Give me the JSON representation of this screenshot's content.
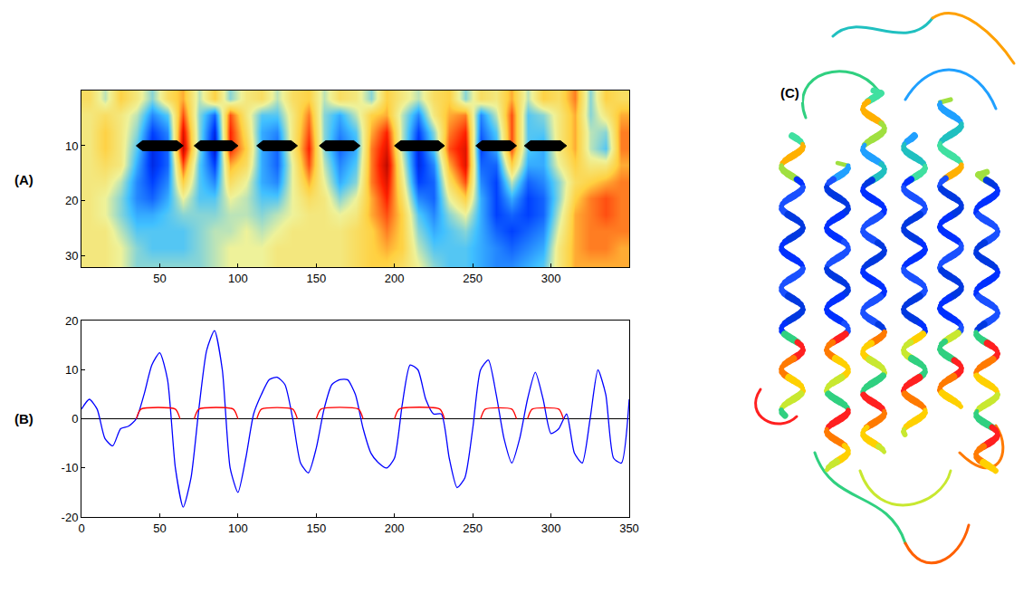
{
  "chart_data": [
    {
      "type": "heatmap",
      "panel": "(A)",
      "x": [
        5,
        15,
        25,
        35,
        45,
        55,
        65,
        75,
        85,
        95,
        105,
        115,
        125,
        135,
        145,
        155,
        165,
        175,
        185,
        195,
        205,
        215,
        225,
        235,
        245,
        255,
        265,
        275,
        285,
        295,
        305,
        315,
        325,
        335,
        345
      ],
      "y": [
        1.5,
        4.5,
        7.5,
        10.5,
        13.5,
        16.5,
        19.5,
        22.5,
        25.5,
        28.5,
        31.5
      ],
      "cells": [
        [
          0.2,
          -0.1,
          0.3,
          0.1,
          -0.2,
          0.2,
          0.4,
          -0.1,
          0.3,
          -0.2,
          0.1,
          0.2,
          -0.1,
          0.2,
          0.3,
          -0.1,
          0.2,
          0.1,
          -0.2,
          0.3,
          0.1,
          -0.1,
          0.2,
          0.3,
          -0.2,
          0.2,
          0.1,
          0.4,
          -0.1,
          0.3,
          0.2,
          0.5,
          -0.2,
          0.3,
          0.2
        ],
        [
          0.1,
          0.2,
          0.1,
          -0.1,
          -0.5,
          -0.3,
          0.6,
          -0.2,
          -0.6,
          0.6,
          0.1,
          -0.3,
          -0.3,
          0.1,
          0.5,
          -0.2,
          -0.4,
          -0.1,
          0.3,
          0.4,
          -0.1,
          -0.5,
          0.1,
          0.4,
          0.5,
          -0.5,
          -0.1,
          0.6,
          -0.3,
          -0.2,
          0.1,
          0.4,
          -0.2,
          0.1,
          0.4
        ],
        [
          0.1,
          0.3,
          0.1,
          -0.2,
          -0.7,
          -0.5,
          0.8,
          -0.2,
          -0.8,
          0.7,
          0.2,
          -0.4,
          -0.5,
          0.1,
          0.6,
          -0.2,
          -0.5,
          -0.3,
          0.4,
          0.7,
          -0.1,
          -0.7,
          -0.2,
          0.5,
          0.7,
          -0.6,
          -0.3,
          0.6,
          -0.3,
          -0.3,
          0.1,
          0.4,
          -0.1,
          -0.2,
          0.5
        ],
        [
          0.1,
          0.3,
          0.1,
          -0.3,
          -0.8,
          -0.6,
          0.9,
          -0.2,
          -0.9,
          0.7,
          0.3,
          -0.4,
          -0.6,
          0.1,
          0.7,
          -0.2,
          -0.6,
          -0.4,
          0.5,
          0.8,
          -0.1,
          -0.8,
          -0.3,
          0.6,
          0.8,
          -0.7,
          -0.4,
          0.6,
          -0.3,
          -0.4,
          0.1,
          0.4,
          -0.1,
          -0.3,
          0.5
        ],
        [
          0.1,
          0.2,
          0.1,
          -0.4,
          -0.8,
          -0.6,
          0.6,
          -0.3,
          -0.7,
          0.4,
          0.2,
          -0.4,
          -0.6,
          0.0,
          0.6,
          -0.1,
          -0.5,
          -0.3,
          0.5,
          0.9,
          0.0,
          -0.8,
          -0.5,
          0.4,
          0.8,
          -0.6,
          -0.6,
          0.3,
          -0.4,
          -0.4,
          0.0,
          0.3,
          0.1,
          0.1,
          0.4
        ],
        [
          0.1,
          0.1,
          -0.1,
          -0.5,
          -0.7,
          -0.5,
          0.3,
          -0.3,
          -0.5,
          0.2,
          0.0,
          -0.4,
          -0.5,
          0.0,
          0.4,
          0.0,
          -0.4,
          -0.2,
          0.5,
          0.8,
          0.1,
          -0.7,
          -0.6,
          0.2,
          0.6,
          -0.5,
          -0.7,
          -0.1,
          -0.6,
          -0.5,
          -0.2,
          0.2,
          0.3,
          0.4,
          0.5
        ],
        [
          0.1,
          0.0,
          -0.2,
          -0.5,
          -0.6,
          -0.4,
          0.0,
          -0.3,
          -0.3,
          0.0,
          -0.1,
          -0.3,
          -0.3,
          0.0,
          0.2,
          0.1,
          -0.2,
          0.0,
          0.4,
          0.7,
          0.2,
          -0.5,
          -0.6,
          0.0,
          0.3,
          -0.4,
          -0.7,
          -0.4,
          -0.7,
          -0.6,
          -0.2,
          0.3,
          0.5,
          0.6,
          0.5
        ],
        [
          0.1,
          0.0,
          -0.2,
          -0.4,
          -0.4,
          -0.3,
          -0.2,
          -0.2,
          -0.2,
          -0.1,
          -0.1,
          -0.2,
          -0.1,
          0.0,
          0.1,
          0.1,
          0.0,
          0.1,
          0.4,
          0.6,
          0.3,
          -0.3,
          -0.5,
          -0.2,
          0.0,
          -0.4,
          -0.7,
          -0.6,
          -0.7,
          -0.6,
          -0.1,
          0.4,
          0.5,
          0.6,
          0.5
        ],
        [
          0.1,
          0.1,
          -0.1,
          -0.3,
          -0.3,
          -0.3,
          -0.3,
          -0.2,
          -0.1,
          -0.1,
          0.0,
          -0.1,
          0.0,
          0.1,
          0.1,
          0.1,
          0.1,
          0.2,
          0.3,
          0.5,
          0.3,
          -0.2,
          -0.4,
          -0.3,
          -0.2,
          -0.4,
          -0.6,
          -0.7,
          -0.6,
          -0.5,
          0.0,
          0.4,
          0.5,
          0.5,
          0.5
        ],
        [
          0.1,
          0.1,
          0.0,
          -0.2,
          -0.3,
          -0.3,
          -0.3,
          -0.2,
          -0.1,
          0.0,
          0.0,
          0.0,
          0.1,
          0.1,
          0.1,
          0.1,
          0.1,
          0.2,
          0.3,
          0.4,
          0.3,
          -0.1,
          -0.3,
          -0.3,
          -0.3,
          -0.4,
          -0.5,
          -0.6,
          -0.5,
          -0.4,
          0.1,
          0.4,
          0.5,
          0.5,
          0.4
        ],
        [
          0.1,
          0.1,
          0.0,
          -0.2,
          -0.2,
          -0.2,
          -0.2,
          -0.2,
          -0.1,
          0.0,
          0.0,
          0.0,
          0.1,
          0.1,
          0.1,
          0.1,
          0.1,
          0.2,
          0.3,
          0.3,
          0.2,
          0.0,
          -0.2,
          -0.3,
          -0.3,
          -0.4,
          -0.5,
          -0.5,
          -0.4,
          -0.3,
          0.1,
          0.4,
          0.4,
          0.4,
          0.4
        ]
      ],
      "zlim": [
        -1,
        1
      ],
      "xlim": [
        0,
        350
      ],
      "xticks": [
        50,
        100,
        150,
        200,
        250,
        300
      ],
      "ylim": [
        32,
        0
      ],
      "yticks": [
        10,
        20,
        30
      ],
      "arrows": [
        {
          "x": [
            35,
            65
          ],
          "y": 10
        },
        {
          "x": [
            72,
            100
          ],
          "y": 10
        },
        {
          "x": [
            112,
            138
          ],
          "y": 10
        },
        {
          "x": [
            152,
            178
          ],
          "y": 10
        },
        {
          "x": [
            200,
            232
          ],
          "y": 10
        },
        {
          "x": [
            252,
            278
          ],
          "y": 10
        },
        {
          "x": [
            283,
            310
          ],
          "y": 10
        }
      ],
      "grid": false
    },
    {
      "type": "line",
      "panel": "(B)",
      "x": [
        0,
        5,
        10,
        15,
        20,
        25,
        30,
        35,
        40,
        45,
        50,
        55,
        60,
        65,
        70,
        75,
        80,
        85,
        90,
        95,
        100,
        105,
        110,
        115,
        120,
        125,
        130,
        135,
        140,
        145,
        150,
        155,
        160,
        165,
        170,
        175,
        180,
        185,
        190,
        195,
        200,
        205,
        210,
        215,
        220,
        225,
        230,
        235,
        240,
        245,
        250,
        255,
        260,
        265,
        270,
        275,
        280,
        285,
        290,
        295,
        300,
        305,
        310,
        315,
        320,
        325,
        330,
        335,
        340,
        345,
        350
      ],
      "series": [
        {
          "color": "#0000ff",
          "values": [
            2,
            4,
            2,
            -4,
            -5.5,
            -2,
            -1.5,
            0,
            5,
            11,
            13.5,
            8,
            -10,
            -18,
            -12,
            2,
            14,
            18,
            10,
            -10,
            -15,
            -8,
            1,
            5,
            8,
            8.5,
            7,
            0,
            -9,
            -11,
            -6,
            2,
            7,
            8,
            8,
            5,
            -2,
            -7,
            -9,
            -10,
            -8,
            3,
            11,
            10,
            4,
            1,
            1,
            -8,
            -14,
            -12,
            -2,
            10,
            12,
            5,
            -4,
            -9,
            -4,
            4,
            9.5,
            4,
            -3,
            -2,
            1,
            -7,
            -9,
            0,
            10,
            5,
            -8,
            -9,
            4
          ]
        },
        {
          "color": "#ff0000",
          "x": [
            35,
            38,
            60,
            63,
            null,
            72,
            75,
            97,
            100,
            null,
            112,
            115,
            135,
            138,
            null,
            150,
            153,
            177,
            180,
            null,
            200,
            203,
            229,
            232,
            null,
            255,
            258,
            275,
            278,
            null,
            285,
            288,
            305,
            308
          ],
          "values": [
            0,
            2,
            2,
            0,
            null,
            0,
            2,
            2,
            0,
            null,
            0,
            2,
            2,
            0,
            null,
            0,
            2,
            2,
            0,
            null,
            0,
            2,
            2,
            0,
            null,
            0,
            2,
            2,
            0,
            null,
            0,
            2,
            2,
            0
          ]
        }
      ],
      "xlim": [
        0,
        350
      ],
      "xticks": [
        0,
        50,
        100,
        150,
        200,
        250,
        300,
        350
      ],
      "ylim": [
        -20,
        20
      ],
      "yticks": [
        -20,
        -10,
        0,
        10,
        20
      ],
      "grid": false
    }
  ],
  "picture": {
    "panel": "(C)"
  }
}
